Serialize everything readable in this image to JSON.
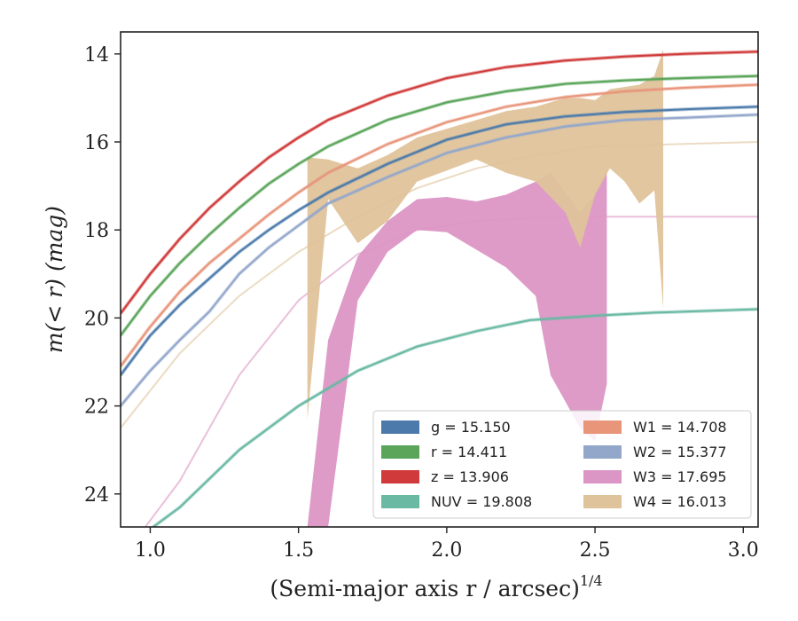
{
  "chart_data": {
    "type": "line",
    "title": "",
    "xlabel": "(Semi-major axis r / arcsec)",
    "xlabel_power": "1/4",
    "ylabel": "m(< r) (mag)",
    "xlim": [
      0.9,
      3.05
    ],
    "ylim": [
      24.75,
      13.5
    ],
    "y_inverted": true,
    "xticks": [
      1.0,
      1.5,
      2.0,
      2.5,
      3.0
    ],
    "xtick_labels": [
      "1.0",
      "1.5",
      "2.0",
      "2.5",
      "3.0"
    ],
    "yticks": [
      14,
      16,
      18,
      20,
      22,
      24
    ],
    "ytick_labels": [
      "14",
      "16",
      "18",
      "20",
      "22",
      "24"
    ],
    "grid": false,
    "legend_position": "lower-right",
    "series": [
      {
        "name": "g",
        "legend": "g = 15.150",
        "color": "#4c7bab",
        "kind": "curve",
        "x": [
          0.9,
          1.0,
          1.1,
          1.2,
          1.3,
          1.4,
          1.5,
          1.6,
          1.8,
          2.0,
          2.2,
          2.4,
          2.6,
          2.8,
          3.05
        ],
        "y": [
          21.3,
          20.4,
          19.7,
          19.1,
          18.5,
          18.0,
          17.55,
          17.15,
          16.5,
          15.95,
          15.6,
          15.42,
          15.32,
          15.26,
          15.2
        ]
      },
      {
        "name": "r",
        "legend": "r = 14.411",
        "color": "#5aa55a",
        "kind": "curve",
        "x": [
          0.9,
          1.0,
          1.1,
          1.2,
          1.3,
          1.4,
          1.5,
          1.6,
          1.8,
          2.0,
          2.2,
          2.4,
          2.6,
          2.8,
          3.05
        ],
        "y": [
          20.4,
          19.5,
          18.75,
          18.1,
          17.5,
          16.95,
          16.5,
          16.1,
          15.5,
          15.1,
          14.85,
          14.68,
          14.6,
          14.55,
          14.5
        ]
      },
      {
        "name": "z",
        "legend": "z = 13.906",
        "color": "#d03a3a",
        "kind": "curve",
        "x": [
          0.9,
          1.0,
          1.1,
          1.2,
          1.3,
          1.4,
          1.5,
          1.6,
          1.8,
          2.0,
          2.2,
          2.4,
          2.6,
          2.8,
          3.05
        ],
        "y": [
          19.9,
          19.0,
          18.2,
          17.5,
          16.9,
          16.35,
          15.9,
          15.5,
          14.95,
          14.55,
          14.3,
          14.15,
          14.06,
          14.0,
          13.95
        ]
      },
      {
        "name": "NUV",
        "legend": "NUV = 19.808",
        "color": "#6ab9a3",
        "kind": "curve",
        "x": [
          0.9,
          1.0,
          1.1,
          1.3,
          1.5,
          1.7,
          1.9,
          2.1,
          2.28,
          2.5,
          2.7,
          3.05
        ],
        "y": [
          25.3,
          24.8,
          24.3,
          23.0,
          22.0,
          21.2,
          20.65,
          20.3,
          20.05,
          19.95,
          19.88,
          19.8
        ]
      },
      {
        "name": "W1",
        "legend": "W1 = 14.708",
        "color": "#e8957a",
        "kind": "curve",
        "x": [
          0.9,
          1.0,
          1.1,
          1.2,
          1.3,
          1.4,
          1.5,
          1.6,
          1.8,
          2.0,
          2.2,
          2.4,
          2.6,
          2.8,
          3.05
        ],
        "y": [
          21.1,
          20.2,
          19.4,
          18.75,
          18.2,
          17.65,
          17.15,
          16.7,
          16.05,
          15.55,
          15.2,
          14.98,
          14.85,
          14.77,
          14.7
        ]
      },
      {
        "name": "W2",
        "legend": "W2 = 15.377",
        "color": "#93a7cb",
        "kind": "curve",
        "x": [
          0.9,
          1.0,
          1.1,
          1.2,
          1.3,
          1.4,
          1.5,
          1.6,
          1.8,
          2.0,
          2.2,
          2.4,
          2.6,
          2.8,
          3.05
        ],
        "y": [
          22.0,
          21.2,
          20.5,
          19.85,
          19.0,
          18.4,
          17.9,
          17.4,
          16.8,
          16.25,
          15.9,
          15.65,
          15.5,
          15.45,
          15.38
        ]
      },
      {
        "name": "W3",
        "legend": "W3 = 17.695",
        "color": "#dc96c5",
        "kind": "band",
        "curve_x": [
          0.9,
          1.1,
          1.3,
          1.5,
          1.7,
          1.9,
          2.1,
          2.3,
          2.5,
          3.05
        ],
        "curve_y": [
          25.5,
          23.7,
          21.3,
          19.6,
          18.55,
          18.0,
          17.8,
          17.72,
          17.7,
          17.7
        ],
        "band_x": [
          1.53,
          1.6,
          1.7,
          1.8,
          1.9,
          2.0,
          2.1,
          2.2,
          2.3,
          2.35,
          2.45,
          2.5,
          2.54
        ],
        "band_lower": [
          24.75,
          24.75,
          19.6,
          18.5,
          18.0,
          18.05,
          18.45,
          18.85,
          19.5,
          21.3,
          22.5,
          22.8,
          21.5
        ],
        "band_upper": [
          24.75,
          20.5,
          18.6,
          17.8,
          17.3,
          17.25,
          17.35,
          17.2,
          16.9,
          16.7,
          17.6,
          17.2,
          16.6
        ]
      },
      {
        "name": "W4",
        "legend": "W4 = 16.013",
        "color": "#dfc39b",
        "kind": "band",
        "curve_x": [
          0.9,
          1.1,
          1.3,
          1.5,
          1.7,
          1.9,
          2.1,
          2.3,
          2.5,
          3.05
        ],
        "curve_y": [
          22.5,
          20.8,
          19.5,
          18.5,
          17.7,
          17.05,
          16.6,
          16.3,
          16.1,
          16.0
        ],
        "band_x": [
          1.53,
          1.6,
          1.7,
          1.8,
          1.9,
          2.0,
          2.1,
          2.2,
          2.3,
          2.4,
          2.45,
          2.5,
          2.55,
          2.6,
          2.65,
          2.7,
          2.73
        ],
        "band_lower": [
          22.3,
          17.3,
          18.3,
          17.8,
          16.9,
          16.65,
          16.4,
          16.7,
          16.9,
          17.6,
          18.4,
          17.2,
          16.6,
          16.9,
          17.4,
          17.1,
          19.8
        ],
        "band_upper": [
          16.35,
          16.4,
          16.6,
          16.3,
          15.9,
          15.7,
          15.5,
          15.3,
          15.2,
          15.0,
          15.0,
          15.05,
          14.8,
          14.75,
          14.7,
          14.5,
          13.9
        ]
      }
    ]
  }
}
